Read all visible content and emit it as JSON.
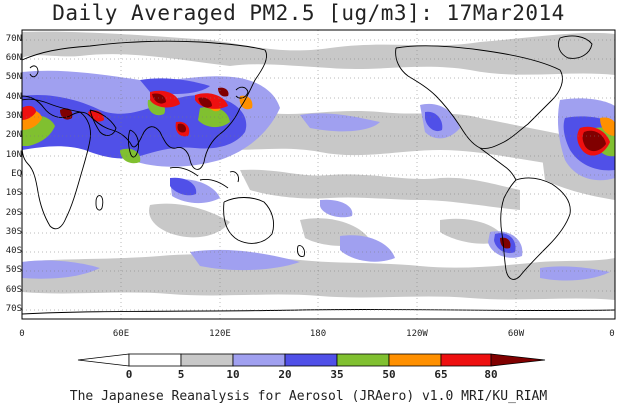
{
  "title": "Daily Averaged PM2.5 [ug/m3]: 17Mar2014",
  "footer": "The Japanese Reanalysis for Aerosol (JRAero) v1.0 MRI/KU_RIAM",
  "lat_labels": [
    "70N",
    "60N",
    "50N",
    "40N",
    "30N",
    "20N",
    "10N",
    "EQ",
    "10S",
    "20S",
    "30S",
    "40S",
    "50S",
    "60S",
    "70S"
  ],
  "lon_labels": [
    "0",
    "60E",
    "120E",
    "180",
    "120W",
    "60W",
    "0"
  ],
  "colorbar": {
    "levels": [
      "0",
      "5",
      "10",
      "20",
      "35",
      "50",
      "65",
      "80"
    ],
    "colors": [
      "#ffffff",
      "#c8c8c8",
      "#a0a0f0",
      "#5050e8",
      "#80c030",
      "#ff9000",
      "#ee1010",
      "#800000"
    ]
  },
  "colors": {
    "ocean_background": "#ffffff",
    "coastline": "#000000",
    "grid": "#777777"
  }
}
